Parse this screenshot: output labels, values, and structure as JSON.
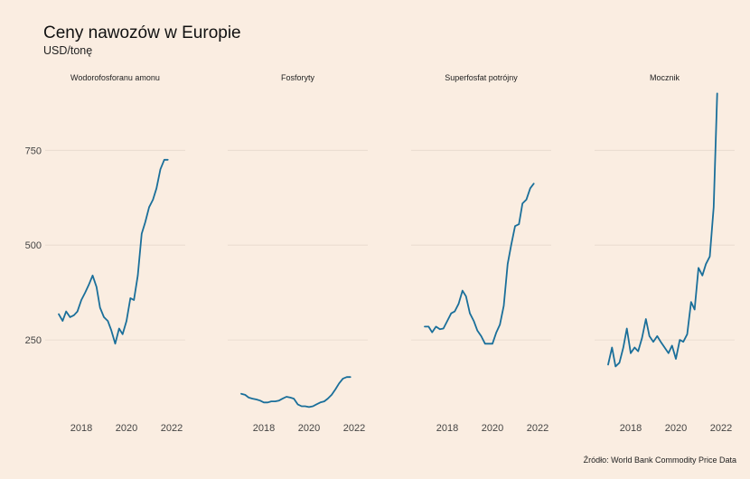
{
  "header": {
    "title": "Ceny nawozów w Europie",
    "subtitle": "USD/tonę"
  },
  "footer": {
    "source": "Źródło: World Bank Commodity Price Data"
  },
  "colors": {
    "background": "#faede1",
    "line": "#1a6f9a",
    "grid": "#e6d9cd",
    "text": "#222222"
  },
  "chart_data": {
    "type": "line",
    "facets": true,
    "grid": true,
    "x_ticks": [
      2018,
      2020,
      2022
    ],
    "xlim": [
      2016.4,
      2022.6
    ],
    "y_ticks": [
      250,
      500,
      750
    ],
    "ylim": [
      50,
      920
    ],
    "panels": [
      {
        "label": "Wodorofosforanu amonu",
        "x": [
          2017.0,
          2017.17,
          2017.33,
          2017.5,
          2017.67,
          2017.83,
          2018.0,
          2018.17,
          2018.33,
          2018.5,
          2018.67,
          2018.83,
          2019.0,
          2019.17,
          2019.33,
          2019.5,
          2019.67,
          2019.83,
          2020.0,
          2020.17,
          2020.33,
          2020.5,
          2020.67,
          2020.83,
          2021.0,
          2021.17,
          2021.33,
          2021.5,
          2021.67,
          2021.83
        ],
        "y": [
          318,
          300,
          325,
          310,
          315,
          325,
          355,
          375,
          395,
          420,
          390,
          335,
          310,
          300,
          275,
          240,
          280,
          265,
          300,
          360,
          355,
          420,
          530,
          560,
          600,
          620,
          650,
          700,
          725,
          725
        ]
      },
      {
        "label": "Fosforyty",
        "x": [
          2017.0,
          2017.17,
          2017.33,
          2017.5,
          2017.67,
          2017.83,
          2018.0,
          2018.17,
          2018.33,
          2018.5,
          2018.67,
          2018.83,
          2019.0,
          2019.17,
          2019.33,
          2019.5,
          2019.67,
          2019.83,
          2020.0,
          2020.17,
          2020.33,
          2020.5,
          2020.67,
          2020.83,
          2021.0,
          2021.17,
          2021.33,
          2021.5,
          2021.67,
          2021.83
        ],
        "y": [
          108,
          105,
          98,
          95,
          93,
          90,
          85,
          85,
          88,
          88,
          90,
          95,
          100,
          98,
          95,
          80,
          75,
          75,
          73,
          75,
          80,
          85,
          88,
          95,
          105,
          120,
          135,
          148,
          152,
          152
        ]
      },
      {
        "label": "Superfosfat potrójny",
        "x": [
          2017.0,
          2017.17,
          2017.33,
          2017.5,
          2017.67,
          2017.83,
          2018.0,
          2018.17,
          2018.33,
          2018.5,
          2018.67,
          2018.83,
          2019.0,
          2019.17,
          2019.33,
          2019.5,
          2019.67,
          2019.83,
          2020.0,
          2020.17,
          2020.33,
          2020.5,
          2020.67,
          2020.83,
          2021.0,
          2021.17,
          2021.33,
          2021.5,
          2021.67,
          2021.83
        ],
        "y": [
          285,
          285,
          270,
          285,
          278,
          280,
          300,
          320,
          325,
          345,
          380,
          365,
          320,
          300,
          275,
          260,
          240,
          240,
          240,
          270,
          290,
          340,
          450,
          500,
          550,
          555,
          610,
          620,
          650,
          662
        ]
      },
      {
        "label": "Mocznik",
        "x": [
          2017.0,
          2017.17,
          2017.33,
          2017.5,
          2017.67,
          2017.83,
          2018.0,
          2018.17,
          2018.33,
          2018.5,
          2018.67,
          2018.83,
          2019.0,
          2019.17,
          2019.33,
          2019.5,
          2019.67,
          2019.83,
          2020.0,
          2020.17,
          2020.33,
          2020.5,
          2020.67,
          2020.83,
          2021.0,
          2021.17,
          2021.33,
          2021.5,
          2021.67,
          2021.83
        ],
        "y": [
          185,
          230,
          180,
          190,
          230,
          280,
          215,
          230,
          220,
          255,
          305,
          260,
          245,
          260,
          245,
          230,
          215,
          235,
          200,
          250,
          245,
          265,
          350,
          330,
          440,
          420,
          450,
          470,
          600,
          900
        ]
      }
    ]
  }
}
